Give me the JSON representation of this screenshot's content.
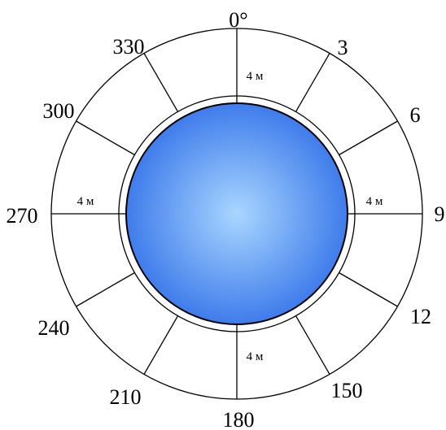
{
  "diagram": {
    "angle_labels": [
      "0°",
      "3",
      "6",
      "9",
      "12",
      "150",
      "180",
      "210",
      "240",
      "270",
      "300",
      "330"
    ],
    "distance_labels": [
      "4 м",
      "4 м",
      "4 м",
      "4 м"
    ],
    "colors": {
      "stroke": "#000000",
      "background": "#ffffff",
      "sphere_center": "#a9d6ff",
      "sphere_edge": "#3f7ceb"
    }
  }
}
